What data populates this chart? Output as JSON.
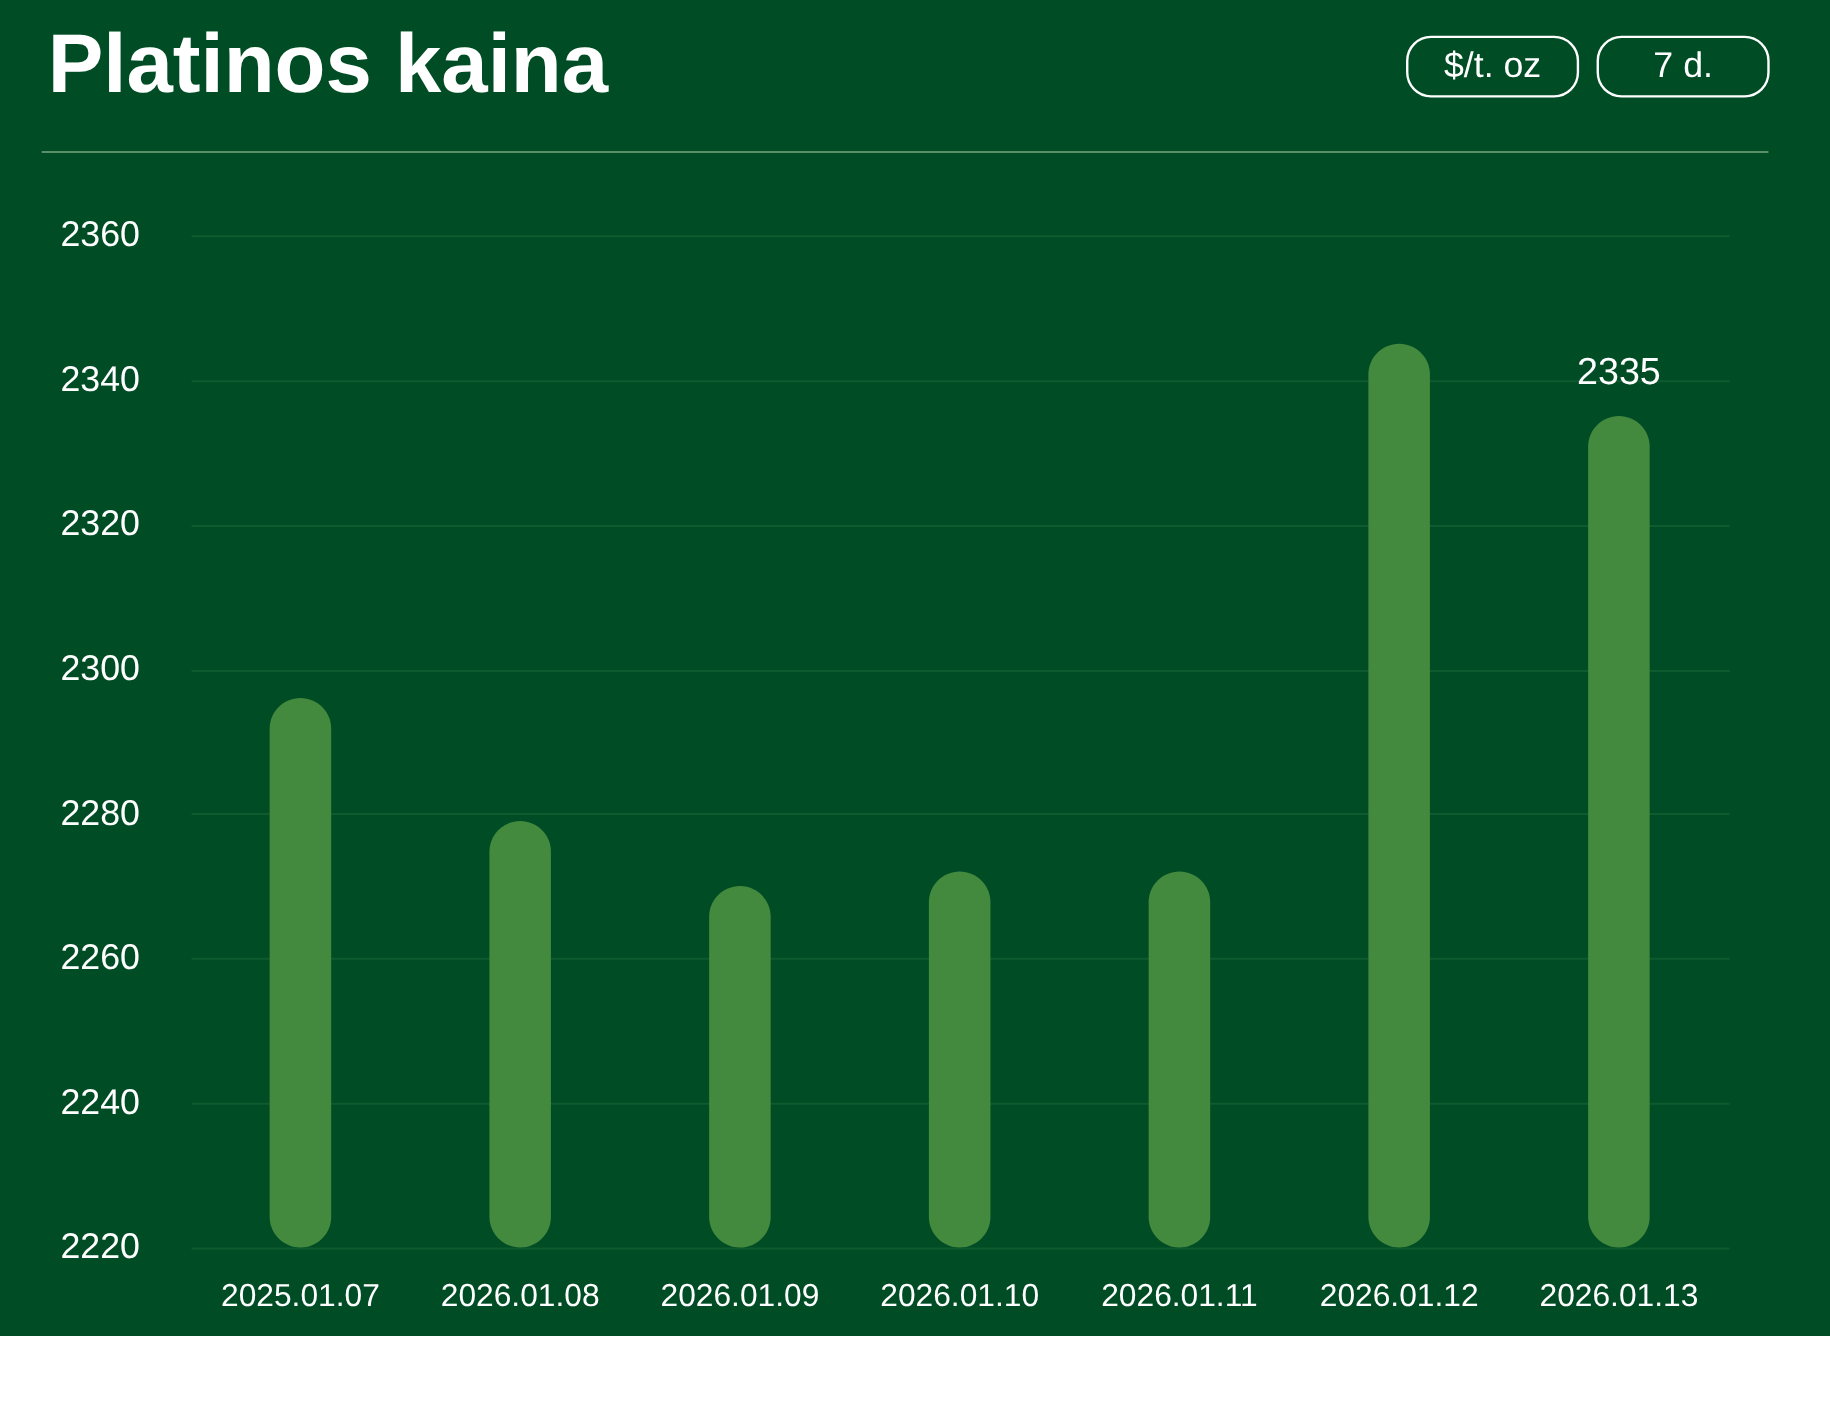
{
  "chart_data": {
    "type": "bar",
    "title": "Platinos kaina",
    "annotations": [
      "$/t. oz",
      "7 d."
    ],
    "categories": [
      "2025.01.07",
      "2026.01.08",
      "2026.01.09",
      "2026.01.10",
      "2026.01.11",
      "2026.01.12",
      "2026.01.13"
    ],
    "values": [
      2296,
      2279,
      2270,
      2272,
      2272,
      2345,
      2335
    ],
    "value_labels": [
      null,
      null,
      null,
      null,
      null,
      null,
      "2335"
    ],
    "color": "#448a3e",
    "ylim": [
      2220,
      2360
    ],
    "yticks": [
      2220,
      2240,
      2260,
      2280,
      2300,
      2320,
      2340,
      2360
    ],
    "grid": "y"
  }
}
